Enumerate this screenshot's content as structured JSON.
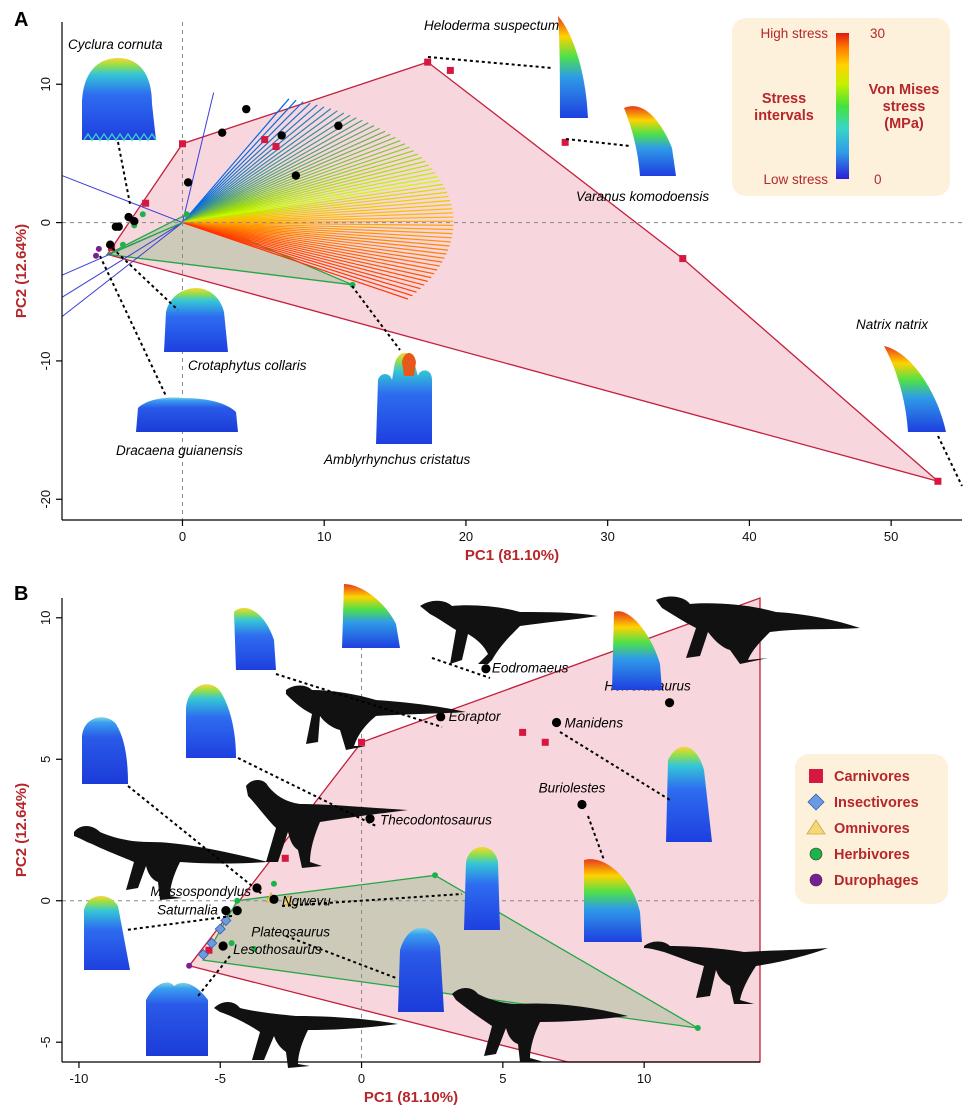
{
  "stress_legend": {
    "high_label": "High stress",
    "low_label": "Low stress",
    "max_value": "30",
    "min_value": "0",
    "intervals_label_1": "Stress",
    "intervals_label_2": "intervals",
    "von_mises_1": "Von Mises",
    "von_mises_2": "stress",
    "von_mises_3": "(MPa)"
  },
  "diet_legend": [
    {
      "label": "Carnivores",
      "color": "#d6173f",
      "marker": "square"
    },
    {
      "label": "Insectivores",
      "color": "#6a9be0",
      "marker": "diamond"
    },
    {
      "label": "Omnivores",
      "color": "#f5d77a",
      "marker": "triangle"
    },
    {
      "label": "Herbivores",
      "color": "#1bb34a",
      "marker": "circle"
    },
    {
      "label": "Durophages",
      "color": "#7a1f93",
      "marker": "circle"
    }
  ],
  "chart_data": [
    {
      "type": "scatter",
      "panel": "A",
      "xlabel": "PC1 (81.10%)",
      "ylabel": "PC2 (12.64%)",
      "xlim": [
        -8.5,
        55
      ],
      "ylim": [
        -21.5,
        14.5
      ],
      "xticks": [
        0,
        10,
        20,
        30,
        40,
        50
      ],
      "yticks": [
        -20,
        -10,
        0,
        10
      ],
      "carnivore_hull": [
        [
          17.3,
          11.6
        ],
        [
          35.3,
          -2.6
        ],
        [
          53.3,
          -18.7
        ],
        [
          -5.3,
          -2.3
        ],
        [
          0,
          5.7
        ]
      ],
      "herbivore_hull": [
        [
          -5.3,
          -2.3
        ],
        [
          0.3,
          0.6
        ],
        [
          12,
          -4.5
        ]
      ],
      "series": [
        {
          "name": "Carnivores",
          "points": [
            [
              0,
              5.7
            ],
            [
              -2.6,
              1.4
            ],
            [
              5.8,
              6.0
            ],
            [
              6.6,
              5.5
            ],
            [
              17.3,
              11.6
            ],
            [
              18.9,
              11.0
            ],
            [
              27.0,
              5.8
            ],
            [
              35.3,
              -2.6
            ],
            [
              53.3,
              -18.7
            ],
            [
              -5.0,
              -1.8
            ]
          ]
        },
        {
          "name": "Herbivores",
          "points": [
            [
              -2.8,
              0.6
            ],
            [
              -3.4,
              -0.2
            ],
            [
              -4.2,
              -1.6
            ],
            [
              0.3,
              0.6
            ],
            [
              12,
              -4.5
            ]
          ]
        },
        {
          "name": "Durophages",
          "points": [
            [
              -6.1,
              -2.4
            ],
            [
              -5.9,
              -1.9
            ]
          ]
        },
        {
          "name": "Unassigned",
          "points": [
            [
              -3.8,
              0.4
            ],
            [
              -4.7,
              -0.3
            ],
            [
              -4.5,
              -0.3
            ],
            [
              -3.4,
              0.1
            ],
            [
              -5.1,
              -1.6
            ],
            [
              0.4,
              2.9
            ],
            [
              2.8,
              6.5
            ],
            [
              4.5,
              8.2
            ],
            [
              7.0,
              6.3
            ],
            [
              8.0,
              3.4
            ],
            [
              11.0,
              7.0
            ]
          ]
        }
      ],
      "annotations": [
        {
          "text": "Cyclura cornuta"
        },
        {
          "text": "Heloderma suspectum"
        },
        {
          "text": "Varanus komodoensis"
        },
        {
          "text": "Crotaphytus collaris"
        },
        {
          "text": "Dracaena guianensis"
        },
        {
          "text": "Amblyrhynchus cristatus"
        },
        {
          "text": "Natrix natrix"
        }
      ]
    },
    {
      "type": "scatter",
      "panel": "B",
      "xlabel": "PC1 (81.10%)",
      "ylabel": "PC2 (12.64%)",
      "xlim": [
        -10.6,
        14.1
      ],
      "ylim": [
        -5.7,
        10.7
      ],
      "xticks": [
        -10,
        -5,
        0,
        5,
        10
      ],
      "yticks": [
        -5,
        0,
        5,
        10
      ],
      "carnivore_hull": [
        [
          0,
          5.6
        ],
        [
          14.1,
          10.7
        ],
        [
          14.1,
          -5.7
        ],
        [
          7.3,
          -5.7
        ],
        [
          -6.1,
          -2.3
        ]
      ],
      "herbivore_hull": [
        [
          -4.4,
          0.0
        ],
        [
          2.6,
          0.9
        ],
        [
          11.9,
          -4.5
        ],
        [
          -5.6,
          -2.1
        ]
      ],
      "series": [
        {
          "name": "Carnivores",
          "points": [
            [
              0,
              5.6
            ],
            [
              -2.7,
              1.5
            ],
            [
              5.7,
              5.95
            ],
            [
              6.5,
              5.6
            ],
            [
              -5.4,
              -1.75
            ]
          ]
        },
        {
          "name": "Herbivores",
          "points": [
            [
              -4.4,
              0.0
            ],
            [
              -3.1,
              0.6
            ],
            [
              2.6,
              0.9
            ],
            [
              11.9,
              -4.5
            ],
            [
              -4.6,
              -1.5
            ],
            [
              -3.8,
              -1.7
            ]
          ]
        },
        {
          "name": "Insectivores",
          "points": [
            [
              -5.6,
              -1.9
            ],
            [
              -5.3,
              -1.5
            ],
            [
              -5.0,
              -1.0
            ],
            [
              -4.8,
              -0.7
            ]
          ]
        },
        {
          "name": "Omnivores",
          "points": [
            [
              -3.2,
              0.1
            ],
            [
              -2.6,
              0.0
            ]
          ]
        },
        {
          "name": "Durophages",
          "points": [
            [
              -6.1,
              -2.3
            ]
          ]
        }
      ],
      "labeled_taxa": [
        {
          "text": "Eodromaeus",
          "x": 4.4,
          "y": 8.2
        },
        {
          "text": "Herrerasaurus",
          "x": 10.9,
          "y": 7.0
        },
        {
          "text": "Eoraptor",
          "x": 2.8,
          "y": 6.5
        },
        {
          "text": "Manidens",
          "x": 6.9,
          "y": 6.3
        },
        {
          "text": "Buriolestes",
          "x": 7.8,
          "y": 3.4
        },
        {
          "text": "Thecodontosaurus",
          "x": 0.3,
          "y": 2.9
        },
        {
          "text": "Massospondylus",
          "x": -3.7,
          "y": 0.45
        },
        {
          "text": "Ngwevu",
          "x": -3.1,
          "y": 0.05
        },
        {
          "text": "Saturnalia",
          "x": -4.8,
          "y": -0.35
        },
        {
          "text": "Plateosaurus",
          "x": -4.4,
          "y": -0.35
        },
        {
          "text": "Lesothosaurus",
          "x": -4.9,
          "y": -1.6
        }
      ]
    }
  ]
}
